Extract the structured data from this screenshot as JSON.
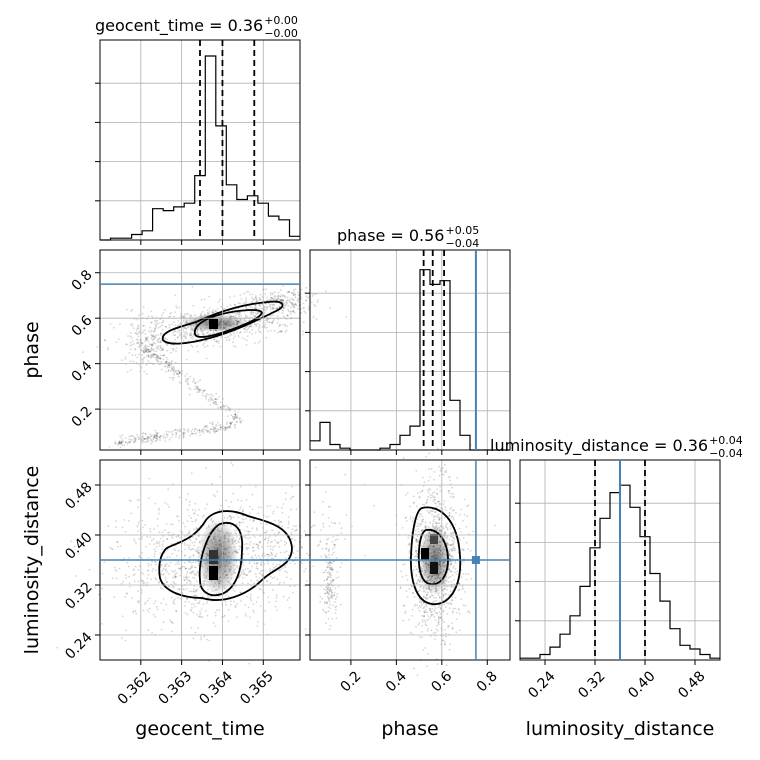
{
  "chart_data": {
    "type": "corner",
    "parameters": [
      {
        "name": "geocent_time",
        "range": [
          0.361,
          0.3659
        ],
        "ticks": [
          "0.362",
          "0.363",
          "0.364",
          "0.365"
        ],
        "tick_values": [
          0.362,
          0.363,
          0.364,
          0.365
        ],
        "title_prefix": "geocent_time = 0.36",
        "title_sup": "+0.00",
        "title_sub": "−0.00"
      },
      {
        "name": "phase",
        "range": [
          0.02,
          0.9
        ],
        "ticks": [
          "0.2",
          "0.4",
          "0.6",
          "0.8"
        ],
        "tick_values": [
          0.2,
          0.4,
          0.6,
          0.8
        ],
        "title_prefix": "phase = 0.56",
        "title_sup": "+0.05",
        "title_sub": "−0.04"
      },
      {
        "name": "luminosity_distance",
        "range": [
          0.2,
          0.52
        ],
        "ticks": [
          "0.24",
          "0.32",
          "0.40",
          "0.48"
        ],
        "tick_values": [
          0.24,
          0.32,
          0.4,
          0.48
        ],
        "title_prefix": "luminosity_distance = 0.36",
        "title_sup": "+0.04",
        "title_sub": "−0.04"
      }
    ],
    "truths": [
      null,
      0.75,
      0.36
    ],
    "quantiles": [
      [
        0.36345,
        0.364,
        0.36478
      ],
      [
        0.52,
        0.56,
        0.61
      ],
      [
        0.32,
        0.36,
        0.4
      ]
    ],
    "histograms": [
      [
        0.0,
        0.01,
        0.01,
        0.03,
        0.05,
        0.17,
        0.16,
        0.18,
        0.2,
        0.35,
        1.0,
        0.62,
        0.3,
        0.22,
        0.24,
        0.2,
        0.13,
        0.11,
        0.02
      ],
      [
        0.05,
        0.15,
        0.03,
        0.01,
        0.0,
        0.0,
        0.0,
        0.01,
        0.03,
        0.08,
        0.13,
        0.98,
        0.9,
        0.92,
        0.27,
        0.08,
        0.0,
        0.0,
        0.0,
        0.0
      ],
      [
        0.01,
        0.01,
        0.03,
        0.07,
        0.14,
        0.24,
        0.4,
        0.61,
        0.77,
        0.91,
        0.95,
        0.83,
        0.67,
        0.47,
        0.32,
        0.17,
        0.08,
        0.06,
        0.03,
        0.01
      ]
    ]
  }
}
